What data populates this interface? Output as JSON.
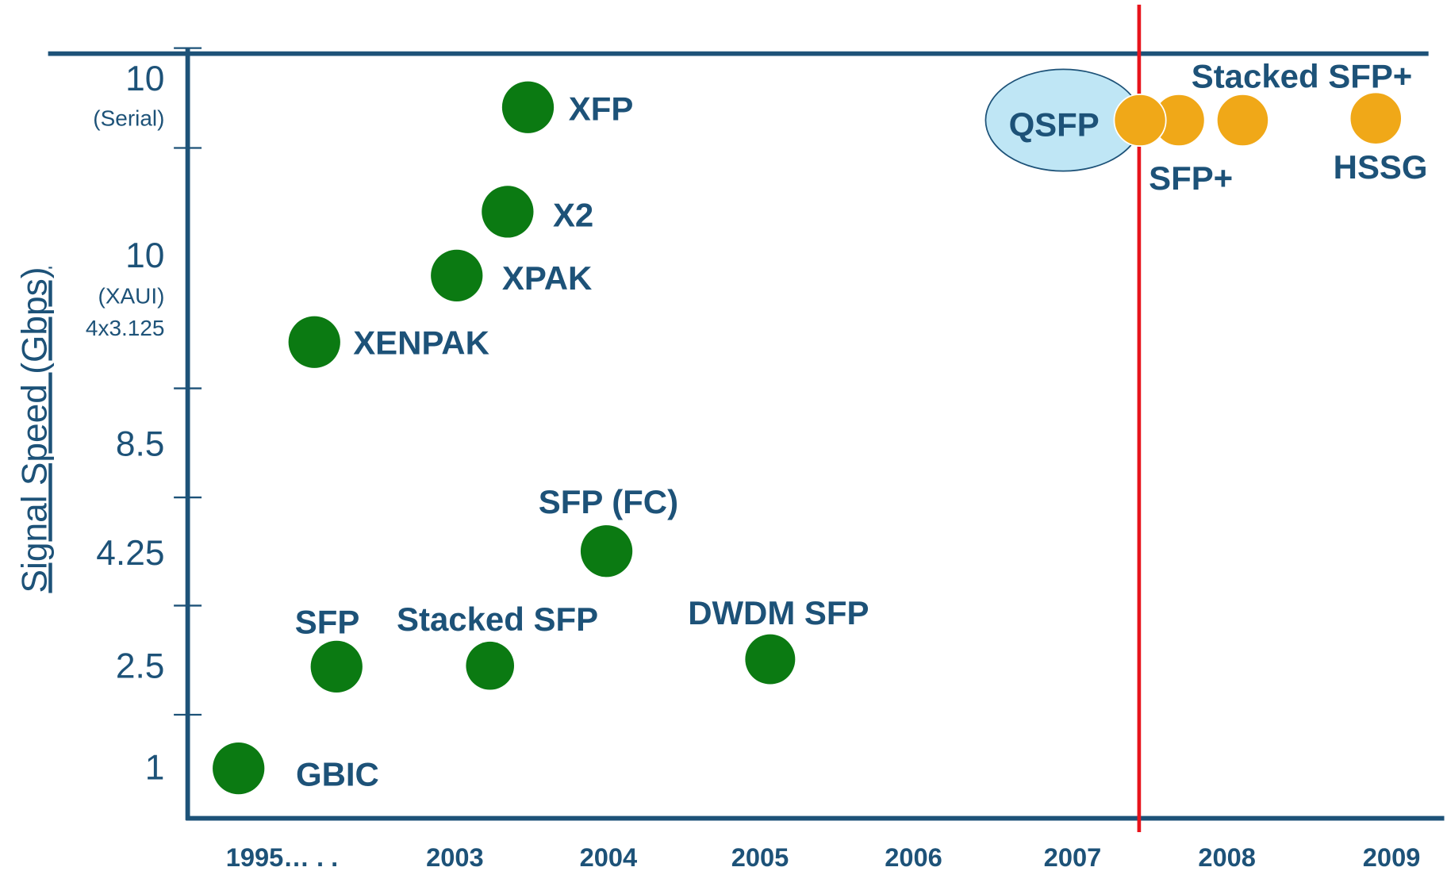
{
  "y_axis": {
    "title": "Signal Speed (Gbps)",
    "labels": [
      "10",
      "(Serial)",
      "10",
      "(XAUI)",
      "4x3.125",
      "8.5",
      "4.25",
      "2.5",
      "1"
    ]
  },
  "x_axis": {
    "labels": [
      "1995… . .",
      "2003",
      "2004",
      "2005",
      "2006",
      "2007",
      "2008",
      "2009"
    ]
  },
  "nodes": [
    {
      "label": "XFP"
    },
    {
      "label": "X2"
    },
    {
      "label": "XPAK"
    },
    {
      "label": "XENPAK"
    },
    {
      "label": "SFP (FC)"
    },
    {
      "label": "SFP"
    },
    {
      "label": "Stacked SFP"
    },
    {
      "label": "DWDM SFP"
    },
    {
      "label": "GBIC"
    },
    {
      "label": "QSFP"
    },
    {
      "label": "Stacked SFP+"
    },
    {
      "label": "SFP+"
    },
    {
      "label": "HSSG"
    }
  ]
}
